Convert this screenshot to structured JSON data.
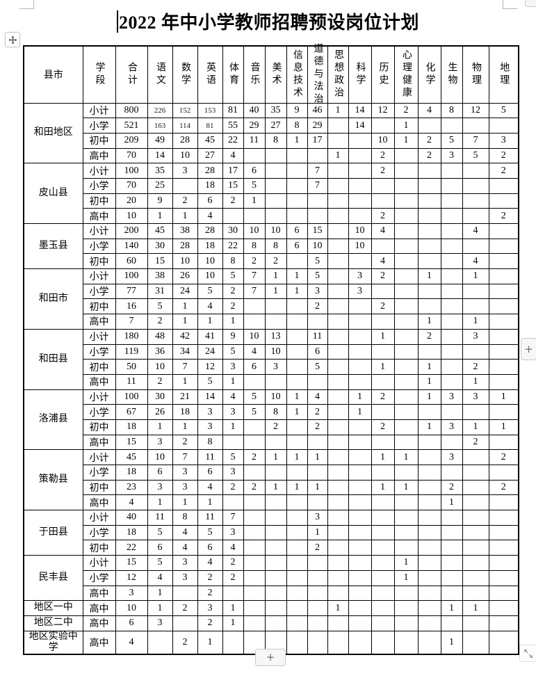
{
  "page": {
    "title": "2022 年中小学教师招聘预设岗位计划"
  },
  "controls": {
    "plus_label": "+"
  },
  "table": {
    "col_headers": [
      "县市",
      "学段",
      "合计",
      "语文",
      "数学",
      "英语",
      "体育",
      "音乐",
      "美术",
      "信息技术",
      "道德与法治",
      "思想政治",
      "科学",
      "历史",
      "心理健康",
      "化学",
      "生物",
      "物理",
      "地理"
    ],
    "groups": [
      {
        "name": "和田地区",
        "rows": [
          {
            "stage": "小计",
            "values": [
              "800",
              "226",
              "152",
              "153",
              "81",
              "40",
              "35",
              "9",
              "46",
              "1",
              "14",
              "12",
              "2",
              "4",
              "8",
              "12",
              "5"
            ],
            "small": [
              1,
              2,
              3
            ]
          },
          {
            "stage": "小学",
            "values": [
              "521",
              "163",
              "114",
              "81",
              "55",
              "29",
              "27",
              "8",
              "29",
              "",
              "14",
              "",
              "1",
              "",
              "",
              "",
              ""
            ],
            "small": [
              1,
              2,
              3
            ]
          },
          {
            "stage": "初中",
            "values": [
              "209",
              "49",
              "28",
              "45",
              "22",
              "11",
              "8",
              "1",
              "17",
              "",
              "",
              "10",
              "1",
              "2",
              "5",
              "7",
              "3"
            ]
          },
          {
            "stage": "高中",
            "values": [
              "70",
              "14",
              "10",
              "27",
              "4",
              "",
              "",
              "",
              "",
              "1",
              "",
              "2",
              "",
              "2",
              "3",
              "5",
              "2"
            ]
          }
        ]
      },
      {
        "name": "皮山县",
        "rows": [
          {
            "stage": "小计",
            "values": [
              "100",
              "35",
              "3",
              "28",
              "17",
              "6",
              "",
              "",
              "7",
              "",
              "",
              "2",
              "",
              "",
              "",
              "",
              "2"
            ]
          },
          {
            "stage": "小学",
            "values": [
              "70",
              "25",
              "",
              "18",
              "15",
              "5",
              "",
              "",
              "7",
              "",
              "",
              "",
              "",
              "",
              "",
              "",
              ""
            ]
          },
          {
            "stage": "初中",
            "values": [
              "20",
              "9",
              "2",
              "6",
              "2",
              "1",
              "",
              "",
              "",
              "",
              "",
              "",
              "",
              "",
              "",
              "",
              ""
            ]
          },
          {
            "stage": "高中",
            "values": [
              "10",
              "1",
              "1",
              "4",
              "",
              "",
              "",
              "",
              "",
              "",
              "",
              "2",
              "",
              "",
              "",
              "",
              "2"
            ]
          }
        ]
      },
      {
        "name": "墨玉县",
        "rows": [
          {
            "stage": "小计",
            "values": [
              "200",
              "45",
              "38",
              "28",
              "30",
              "10",
              "10",
              "6",
              "15",
              "",
              "10",
              "4",
              "",
              "",
              "",
              "4",
              ""
            ]
          },
          {
            "stage": "小学",
            "values": [
              "140",
              "30",
              "28",
              "18",
              "22",
              "8",
              "8",
              "6",
              "10",
              "",
              "10",
              "",
              "",
              "",
              "",
              "",
              ""
            ]
          },
          {
            "stage": "初中",
            "values": [
              "60",
              "15",
              "10",
              "10",
              "8",
              "2",
              "2",
              "",
              "5",
              "",
              "",
              "4",
              "",
              "",
              "",
              "4",
              ""
            ]
          }
        ]
      },
      {
        "name": "和田市",
        "rows": [
          {
            "stage": "小计",
            "values": [
              "100",
              "38",
              "26",
              "10",
              "5",
              "7",
              "1",
              "1",
              "5",
              "",
              "3",
              "2",
              "",
              "1",
              "",
              "1",
              ""
            ]
          },
          {
            "stage": "小学",
            "values": [
              "77",
              "31",
              "24",
              "5",
              "2",
              "7",
              "1",
              "1",
              "3",
              "",
              "3",
              "",
              "",
              "",
              "",
              "",
              ""
            ]
          },
          {
            "stage": "初中",
            "values": [
              "16",
              "5",
              "1",
              "4",
              "2",
              "",
              "",
              "",
              "2",
              "",
              "",
              "2",
              "",
              "",
              "",
              "",
              ""
            ]
          },
          {
            "stage": "高中",
            "values": [
              "7",
              "2",
              "1",
              "1",
              "1",
              "",
              "",
              "",
              "",
              "",
              "",
              "",
              "",
              "1",
              "",
              "1",
              ""
            ]
          }
        ]
      },
      {
        "name": "和田县",
        "rows": [
          {
            "stage": "小计",
            "values": [
              "180",
              "48",
              "42",
              "41",
              "9",
              "10",
              "13",
              "",
              "11",
              "",
              "",
              "1",
              "",
              "2",
              "",
              "3",
              ""
            ]
          },
          {
            "stage": "小学",
            "values": [
              "119",
              "36",
              "34",
              "24",
              "5",
              "4",
              "10",
              "",
              "6",
              "",
              "",
              "",
              "",
              "",
              "",
              "",
              ""
            ]
          },
          {
            "stage": "初中",
            "values": [
              "50",
              "10",
              "7",
              "12",
              "3",
              "6",
              "3",
              "",
              "5",
              "",
              "",
              "1",
              "",
              "1",
              "",
              "2",
              ""
            ]
          },
          {
            "stage": "高中",
            "values": [
              "11",
              "2",
              "1",
              "5",
              "1",
              "",
              "",
              "",
              "",
              "",
              "",
              "",
              "",
              "1",
              "",
              "1",
              ""
            ]
          }
        ]
      },
      {
        "name": "洛浦县",
        "rows": [
          {
            "stage": "小计",
            "values": [
              "100",
              "30",
              "21",
              "14",
              "4",
              "5",
              "10",
              "1",
              "4",
              "",
              "1",
              "2",
              "",
              "1",
              "3",
              "3",
              "1"
            ]
          },
          {
            "stage": "小学",
            "values": [
              "67",
              "26",
              "18",
              "3",
              "3",
              "5",
              "8",
              "1",
              "2",
              "",
              "1",
              "",
              "",
              "",
              "",
              "",
              ""
            ]
          },
          {
            "stage": "初中",
            "values": [
              "18",
              "1",
              "1",
              "3",
              "1",
              "",
              "2",
              "",
              "2",
              "",
              "",
              "2",
              "",
              "1",
              "3",
              "1",
              "1"
            ]
          },
          {
            "stage": "高中",
            "values": [
              "15",
              "3",
              "2",
              "8",
              "",
              "",
              "",
              "",
              "",
              "",
              "",
              "",
              "",
              "",
              "",
              "2",
              ""
            ]
          }
        ]
      },
      {
        "name": "策勒县",
        "rows": [
          {
            "stage": "小计",
            "values": [
              "45",
              "10",
              "7",
              "11",
              "5",
              "2",
              "1",
              "1",
              "1",
              "",
              "",
              "1",
              "1",
              "",
              "3",
              "",
              "2"
            ]
          },
          {
            "stage": "小学",
            "values": [
              "18",
              "6",
              "3",
              "6",
              "3",
              "",
              "",
              "",
              "",
              "",
              "",
              "",
              "",
              "",
              "",
              "",
              ""
            ]
          },
          {
            "stage": "初中",
            "values": [
              "23",
              "3",
              "3",
              "4",
              "2",
              "2",
              "1",
              "1",
              "1",
              "",
              "",
              "1",
              "1",
              "",
              "2",
              "",
              "2"
            ]
          },
          {
            "stage": "高中",
            "values": [
              "4",
              "1",
              "1",
              "1",
              "",
              "",
              "",
              "",
              "",
              "",
              "",
              "",
              "",
              "",
              "1",
              "",
              ""
            ]
          }
        ]
      },
      {
        "name": "于田县",
        "rows": [
          {
            "stage": "小计",
            "values": [
              "40",
              "11",
              "8",
              "11",
              "7",
              "",
              "",
              "",
              "3",
              "",
              "",
              "",
              "",
              "",
              "",
              "",
              ""
            ]
          },
          {
            "stage": "小学",
            "values": [
              "18",
              "5",
              "4",
              "5",
              "3",
              "",
              "",
              "",
              "1",
              "",
              "",
              "",
              "",
              "",
              "",
              "",
              ""
            ]
          },
          {
            "stage": "初中",
            "values": [
              "22",
              "6",
              "4",
              "6",
              "4",
              "",
              "",
              "",
              "2",
              "",
              "",
              "",
              "",
              "",
              "",
              "",
              ""
            ]
          }
        ]
      },
      {
        "name": "民丰县",
        "rows": [
          {
            "stage": "小计",
            "values": [
              "15",
              "5",
              "3",
              "4",
              "2",
              "",
              "",
              "",
              "",
              "",
              "",
              "",
              "1",
              "",
              "",
              "",
              ""
            ]
          },
          {
            "stage": "小学",
            "values": [
              "12",
              "4",
              "3",
              "2",
              "2",
              "",
              "",
              "",
              "",
              "",
              "",
              "",
              "1",
              "",
              "",
              "",
              ""
            ]
          },
          {
            "stage": "高中",
            "values": [
              "3",
              "1",
              "",
              "2",
              "",
              "",
              "",
              "",
              "",
              "",
              "",
              "",
              "",
              "",
              "",
              "",
              ""
            ]
          }
        ]
      },
      {
        "name": "地区一中",
        "rows": [
          {
            "stage": "高中",
            "values": [
              "10",
              "1",
              "2",
              "3",
              "1",
              "",
              "",
              "",
              "",
              "1",
              "",
              "",
              "",
              "",
              "1",
              "1",
              ""
            ]
          }
        ]
      },
      {
        "name": "地区二中",
        "rows": [
          {
            "stage": "高中",
            "values": [
              "6",
              "3",
              "",
              "2",
              "1",
              "",
              "",
              "",
              "",
              "",
              "",
              "",
              "",
              "",
              "",
              "",
              ""
            ]
          }
        ]
      },
      {
        "name": "地区实验中学",
        "rows": [
          {
            "stage": "高中",
            "values": [
              "4",
              "",
              "2",
              "1",
              "",
              "",
              "",
              "",
              "",
              "",
              "",
              "",
              "",
              "",
              "1",
              "",
              ""
            ]
          }
        ]
      }
    ]
  }
}
